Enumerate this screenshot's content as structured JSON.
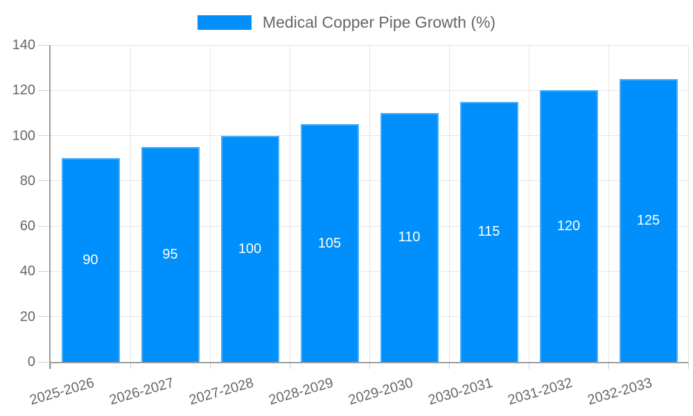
{
  "chart_data": {
    "type": "bar",
    "title": "Medical Copper Pipe Growth (%)",
    "categories": [
      "2025-2026",
      "2026-2027",
      "2027-2028",
      "2028-2029",
      "2029-2030",
      "2030-2031",
      "2031-2032",
      "2032-2033"
    ],
    "series": [
      {
        "name": "Medical Copper Pipe Growth (%)",
        "values": [
          90,
          95,
          100,
          105,
          110,
          115,
          120,
          125
        ],
        "color": "#008FFB"
      }
    ],
    "xlabel": "",
    "ylabel": "",
    "ylim": [
      0,
      140
    ],
    "yticks": [
      "0",
      "20",
      "40",
      "60",
      "80",
      "100",
      "120",
      "140"
    ],
    "grid": "on",
    "legend_position": "top",
    "value_labels": "inside-center",
    "value_label_color": "#ffffff",
    "text_color": "#666666",
    "grid_color": "#e6e6e6",
    "axis_color": "#9b9b9b",
    "x_label_rotation_deg": -16
  }
}
